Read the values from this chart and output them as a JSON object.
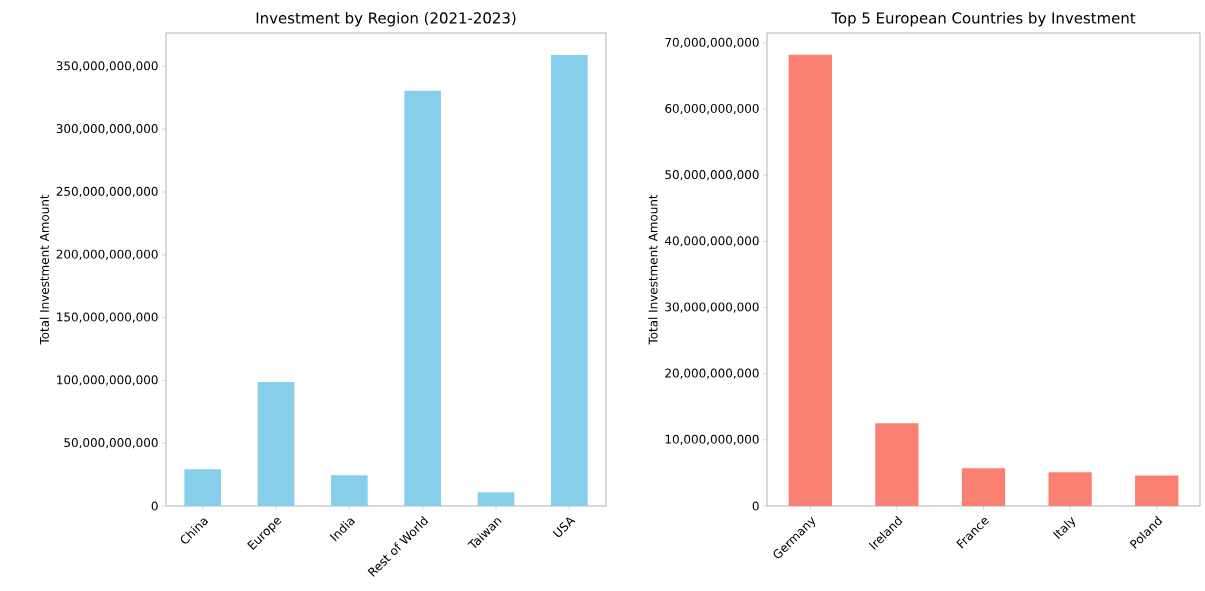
{
  "chart_data": [
    {
      "type": "bar",
      "title": "Investment by Region (2021-2023)",
      "ylabel": "Total Investment Amount",
      "categories": [
        "China",
        "Europe",
        "India",
        "Rest of World",
        "Taiwan",
        "USA"
      ],
      "values": [
        29300000000,
        98700000000,
        24500000000,
        330600000000,
        10900000000,
        359000000000
      ],
      "color": "#87ceeb",
      "ylim": [
        0,
        376600000000
      ],
      "yticks": [
        0,
        {
          "value": 50000000000,
          "label": "50,000,000,000"
        },
        {
          "value": 100000000000,
          "label": "100,000,000,000"
        },
        {
          "value": 150000000000,
          "label": "150,000,000,000"
        },
        {
          "value": 200000000000,
          "label": "200,000,000,000"
        },
        {
          "value": 250000000000,
          "label": "250,000,000,000"
        },
        {
          "value": 300000000000,
          "label": "300,000,000,000"
        },
        {
          "value": 350000000000,
          "label": "350,000,000,000"
        }
      ]
    },
    {
      "type": "bar",
      "title": "Top 5 European Countries by Investment",
      "ylabel": "Total Investment Amount",
      "categories": [
        "Germany",
        "Ireland",
        "France",
        "Italy",
        "Poland"
      ],
      "values": [
        68200000000,
        12500000000,
        5700000000,
        5100000000,
        4600000000
      ],
      "color": "#fa8072",
      "ylim": [
        0,
        71500000000
      ],
      "yticks": [
        0,
        {
          "value": 10000000000,
          "label": "10,000,000,000"
        },
        {
          "value": 20000000000,
          "label": "20,000,000,000"
        },
        {
          "value": 30000000000,
          "label": "30,000,000,000"
        },
        {
          "value": 40000000000,
          "label": "40,000,000,000"
        },
        {
          "value": 50000000000,
          "label": "50,000,000,000"
        },
        {
          "value": 60000000000,
          "label": "60,000,000,000"
        },
        {
          "value": 70000000000,
          "label": "70,000,000,000"
        }
      ]
    }
  ]
}
